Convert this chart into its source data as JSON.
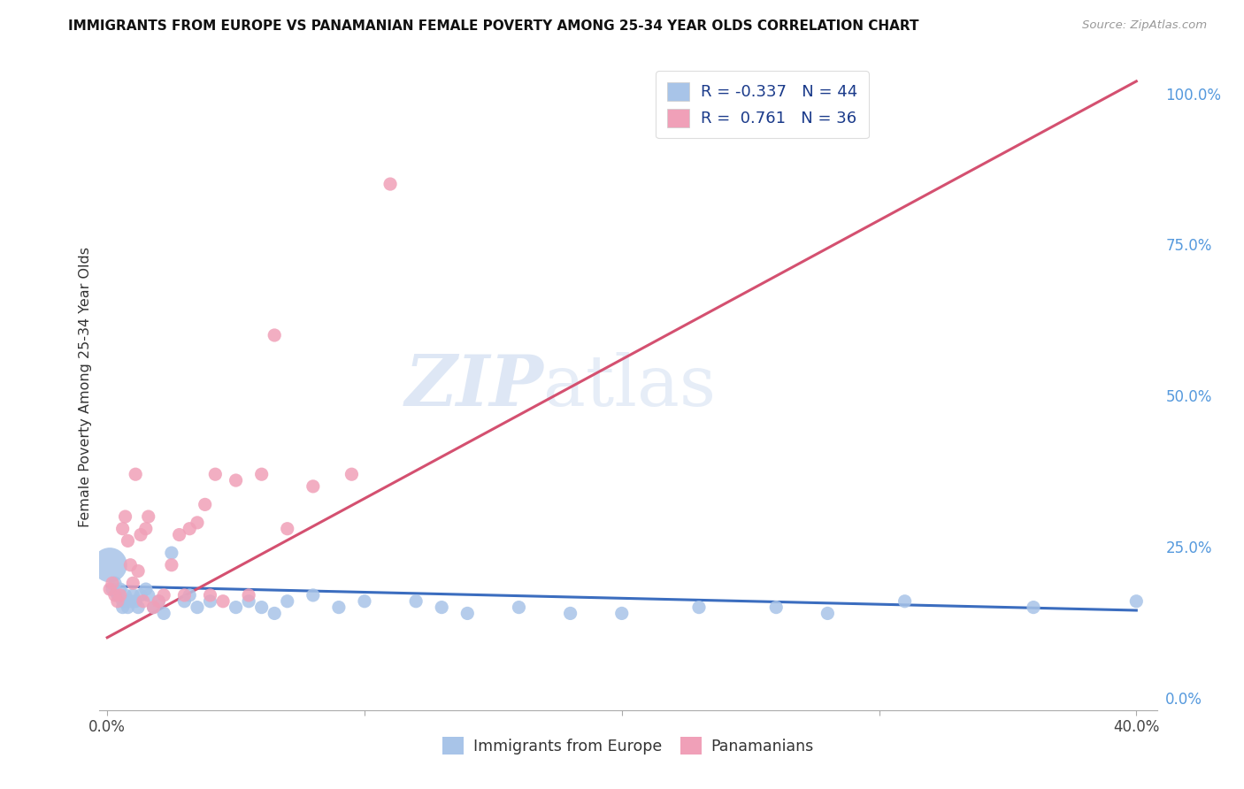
{
  "title": "IMMIGRANTS FROM EUROPE VS PANAMANIAN FEMALE POVERTY AMONG 25-34 YEAR OLDS CORRELATION CHART",
  "source": "Source: ZipAtlas.com",
  "ylabel": "Female Poverty Among 25-34 Year Olds",
  "watermark_zip": "ZIP",
  "watermark_atlas": "atlas",
  "legend_entries": [
    {
      "label": "Immigrants from Europe",
      "R": "-0.337",
      "N": "44",
      "color": "#a8c4e8",
      "line_color": "#3b6dbf"
    },
    {
      "label": "Panamanians",
      "R": "0.761",
      "N": "36",
      "color": "#f0a0b8",
      "line_color": "#d45070"
    }
  ],
  "background_color": "#ffffff",
  "grid_color": "#cccccc",
  "right_axis_color": "#5599dd",
  "right_yticks": [
    0.0,
    0.25,
    0.5,
    0.75,
    1.0
  ],
  "right_yticklabels": [
    "0.0%",
    "25.0%",
    "50.0%",
    "75.0%",
    "100.0%"
  ],
  "blue_x": [
    0.001,
    0.002,
    0.003,
    0.004,
    0.005,
    0.006,
    0.006,
    0.007,
    0.008,
    0.009,
    0.01,
    0.011,
    0.012,
    0.013,
    0.015,
    0.016,
    0.018,
    0.02,
    0.022,
    0.025,
    0.03,
    0.032,
    0.035,
    0.04,
    0.05,
    0.055,
    0.06,
    0.065,
    0.07,
    0.08,
    0.09,
    0.1,
    0.12,
    0.13,
    0.14,
    0.16,
    0.18,
    0.2,
    0.23,
    0.26,
    0.28,
    0.31,
    0.36,
    0.4
  ],
  "blue_y": [
    0.22,
    0.18,
    0.19,
    0.17,
    0.18,
    0.16,
    0.15,
    0.17,
    0.15,
    0.16,
    0.17,
    0.16,
    0.15,
    0.17,
    0.18,
    0.17,
    0.15,
    0.16,
    0.14,
    0.24,
    0.16,
    0.17,
    0.15,
    0.16,
    0.15,
    0.16,
    0.15,
    0.14,
    0.16,
    0.17,
    0.15,
    0.16,
    0.16,
    0.15,
    0.14,
    0.15,
    0.14,
    0.14,
    0.15,
    0.15,
    0.14,
    0.16,
    0.15,
    0.16
  ],
  "blue_sizes": [
    800,
    120,
    120,
    120,
    120,
    120,
    120,
    120,
    120,
    120,
    120,
    120,
    120,
    120,
    120,
    120,
    120,
    120,
    120,
    120,
    120,
    120,
    120,
    120,
    120,
    120,
    120,
    120,
    120,
    120,
    120,
    120,
    120,
    120,
    120,
    120,
    120,
    120,
    120,
    120,
    120,
    120,
    120,
    120
  ],
  "pink_x": [
    0.001,
    0.002,
    0.003,
    0.004,
    0.005,
    0.006,
    0.007,
    0.008,
    0.009,
    0.01,
    0.011,
    0.012,
    0.013,
    0.014,
    0.015,
    0.016,
    0.018,
    0.02,
    0.022,
    0.025,
    0.028,
    0.03,
    0.032,
    0.035,
    0.038,
    0.04,
    0.042,
    0.045,
    0.05,
    0.055,
    0.06,
    0.065,
    0.07,
    0.08,
    0.095,
    0.11
  ],
  "pink_y": [
    0.18,
    0.19,
    0.17,
    0.16,
    0.17,
    0.28,
    0.3,
    0.26,
    0.22,
    0.19,
    0.37,
    0.21,
    0.27,
    0.16,
    0.28,
    0.3,
    0.15,
    0.16,
    0.17,
    0.22,
    0.27,
    0.17,
    0.28,
    0.29,
    0.32,
    0.17,
    0.37,
    0.16,
    0.36,
    0.17,
    0.37,
    0.6,
    0.28,
    0.35,
    0.37,
    0.85
  ],
  "pink_sizes": [
    120,
    120,
    120,
    120,
    120,
    120,
    120,
    120,
    120,
    120,
    120,
    120,
    120,
    120,
    120,
    120,
    120,
    120,
    120,
    120,
    120,
    120,
    120,
    120,
    120,
    120,
    120,
    120,
    120,
    120,
    120,
    120,
    120,
    120,
    120,
    120
  ],
  "blue_line_x": [
    0.0,
    0.4
  ],
  "blue_line_y": [
    0.185,
    0.145
  ],
  "pink_line_x": [
    0.0,
    0.4
  ],
  "pink_line_y": [
    0.1,
    1.02
  ],
  "xlim": [
    -0.003,
    0.408
  ],
  "ylim": [
    -0.02,
    1.05
  ]
}
